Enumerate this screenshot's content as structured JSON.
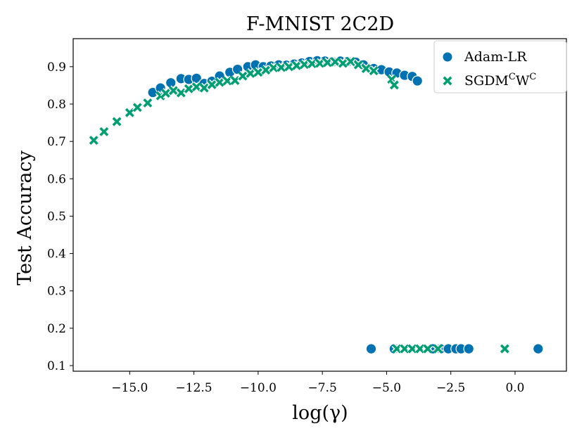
{
  "chart_data": {
    "type": "scatter",
    "title": "F-MNIST 2C2D",
    "xlabel": "log(γ)",
    "ylabel": "Test Accuracy",
    "xlim": [
      -17.2,
      2.0
    ],
    "ylim": [
      0.085,
      0.975
    ],
    "xticks": [
      -15.0,
      -12.5,
      -10.0,
      -7.5,
      -5.0,
      -2.5,
      0.0
    ],
    "xtick_labels": [
      "−15.0",
      "−12.5",
      "−10.0",
      "−7.5",
      "−5.0",
      "−2.5",
      "0.0"
    ],
    "yticks": [
      0.1,
      0.2,
      0.3,
      0.4,
      0.5,
      0.6,
      0.7,
      0.8,
      0.9
    ],
    "ytick_labels": [
      "0.1",
      "0.2",
      "0.3",
      "0.4",
      "0.5",
      "0.6",
      "0.7",
      "0.8",
      "0.9"
    ],
    "legend_position": "top-right",
    "colors": {
      "adam": "#0072b2",
      "sgdm": "#009e73"
    },
    "series": [
      {
        "name": "Adam-LR",
        "marker": "circle",
        "x": [
          -14.1,
          -13.8,
          -13.4,
          -13.0,
          -12.7,
          -12.4,
          -12.1,
          -11.8,
          -11.5,
          -11.1,
          -10.8,
          -10.4,
          -10.1,
          -9.8,
          -9.5,
          -9.2,
          -8.9,
          -8.6,
          -8.3,
          -8.0,
          -7.7,
          -7.4,
          -7.1,
          -6.8,
          -6.5,
          -6.2,
          -5.9,
          -5.5,
          -5.2,
          -4.9,
          -4.6,
          -4.3,
          -4.0,
          -3.8,
          -5.6,
          -4.7,
          -3.2,
          -2.9,
          -2.6,
          -2.3,
          -2.1,
          -1.8,
          0.9
        ],
        "y": [
          0.831,
          0.843,
          0.857,
          0.868,
          0.866,
          0.869,
          0.855,
          0.861,
          0.875,
          0.885,
          0.893,
          0.9,
          0.905,
          0.9,
          0.902,
          0.905,
          0.904,
          0.907,
          0.91,
          0.914,
          0.916,
          0.915,
          0.913,
          0.915,
          0.914,
          0.912,
          0.905,
          0.895,
          0.892,
          0.886,
          0.883,
          0.877,
          0.874,
          0.862,
          0.145,
          0.145,
          0.145,
          0.145,
          0.145,
          0.145,
          0.145,
          0.145,
          0.145
        ]
      },
      {
        "name": "SGDMCWC",
        "marker": "x",
        "x": [
          -16.4,
          -16.0,
          -15.5,
          -15.0,
          -14.7,
          -14.3,
          -13.8,
          -13.6,
          -13.3,
          -13.0,
          -12.7,
          -12.4,
          -12.1,
          -11.8,
          -11.5,
          -11.2,
          -10.9,
          -10.6,
          -10.3,
          -10.0,
          -9.7,
          -9.4,
          -9.1,
          -8.8,
          -8.5,
          -8.2,
          -7.9,
          -7.6,
          -7.3,
          -7.0,
          -6.7,
          -6.4,
          -6.1,
          -5.8,
          -5.5,
          -4.8,
          -4.7,
          -4.6,
          -4.3,
          -4.0,
          -3.7,
          -3.4,
          -3.0,
          -0.4
        ],
        "y": [
          0.703,
          0.726,
          0.753,
          0.777,
          0.791,
          0.803,
          0.822,
          0.829,
          0.836,
          0.83,
          0.841,
          0.846,
          0.843,
          0.852,
          0.858,
          0.862,
          0.863,
          0.875,
          0.882,
          0.885,
          0.891,
          0.897,
          0.898,
          0.9,
          0.903,
          0.906,
          0.908,
          0.909,
          0.911,
          0.913,
          0.909,
          0.914,
          0.905,
          0.895,
          0.889,
          0.866,
          0.851,
          0.145,
          0.145,
          0.145,
          0.145,
          0.145,
          0.145,
          0.145
        ]
      }
    ]
  },
  "legend": {
    "adam_label": "Adam-LR",
    "sgdm_label_main": "SGDM",
    "sgdm_sup1": "C",
    "sgdm_label_w": "W",
    "sgdm_sup2": "C"
  }
}
